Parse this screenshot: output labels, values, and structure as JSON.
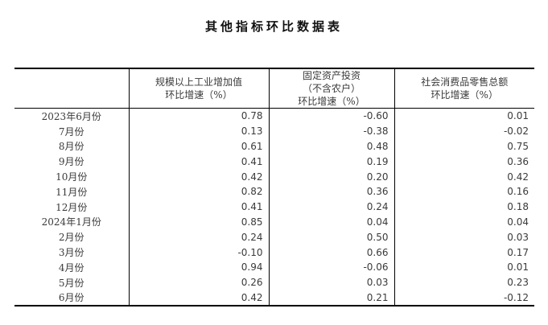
{
  "title": "其他指标环比数据表",
  "table": {
    "headers": [
      {
        "lines": [
          "规模以上工业增加值",
          "环比增速（%）"
        ]
      },
      {
        "lines": [
          "固定资产投资",
          "（不含农户）",
          "环比增速（%）"
        ]
      },
      {
        "lines": [
          "社会消费品零售总额",
          "环比增速（%）"
        ]
      }
    ],
    "rows": [
      {
        "label": "2023年6月份",
        "values": [
          "0.78",
          "-0.60",
          "0.01"
        ]
      },
      {
        "label": "7月份",
        "values": [
          "0.13",
          "-0.38",
          "-0.02"
        ]
      },
      {
        "label": "8月份",
        "values": [
          "0.61",
          "0.48",
          "0.75"
        ]
      },
      {
        "label": "9月份",
        "values": [
          "0.41",
          "0.19",
          "0.36"
        ]
      },
      {
        "label": "10月份",
        "values": [
          "0.42",
          "0.20",
          "0.42"
        ]
      },
      {
        "label": "11月份",
        "values": [
          "0.82",
          "0.36",
          "0.16"
        ]
      },
      {
        "label": "12月份",
        "values": [
          "0.41",
          "0.24",
          "0.18"
        ]
      },
      {
        "label": "2024年1月份",
        "values": [
          "0.85",
          "0.04",
          "0.04"
        ]
      },
      {
        "label": "2月份",
        "values": [
          "0.24",
          "0.50",
          "0.03"
        ]
      },
      {
        "label": "3月份",
        "values": [
          "-0.10",
          "0.66",
          "0.17"
        ]
      },
      {
        "label": "4月份",
        "values": [
          "0.94",
          "-0.06",
          "0.01"
        ]
      },
      {
        "label": "5月份",
        "values": [
          "0.26",
          "0.03",
          "0.23"
        ]
      },
      {
        "label": "6月份",
        "values": [
          "0.42",
          "0.21",
          "-0.12"
        ]
      }
    ]
  },
  "chart_data": {
    "type": "table",
    "title": "其他指标环比数据表",
    "categories": [
      "2023年6月份",
      "7月份",
      "8月份",
      "9月份",
      "10月份",
      "11月份",
      "12月份",
      "2024年1月份",
      "2月份",
      "3月份",
      "4月份",
      "5月份",
      "6月份"
    ],
    "series": [
      {
        "name": "规模以上工业增加值环比增速（%）",
        "values": [
          0.78,
          0.13,
          0.61,
          0.41,
          0.42,
          0.82,
          0.41,
          0.85,
          0.24,
          -0.1,
          0.94,
          0.26,
          0.42
        ]
      },
      {
        "name": "固定资产投资（不含农户）环比增速（%）",
        "values": [
          -0.6,
          -0.38,
          0.48,
          0.19,
          0.2,
          0.36,
          0.24,
          0.04,
          0.5,
          0.66,
          -0.06,
          0.03,
          0.21
        ]
      },
      {
        "name": "社会消费品零售总额环比增速（%）",
        "values": [
          0.01,
          -0.02,
          0.75,
          0.36,
          0.42,
          0.16,
          0.18,
          0.04,
          0.03,
          0.17,
          0.01,
          0.23,
          -0.12
        ]
      }
    ]
  },
  "colors": {
    "text": "#3a3a3a",
    "title": "#111111",
    "border": "#000000",
    "background": "#ffffff"
  }
}
